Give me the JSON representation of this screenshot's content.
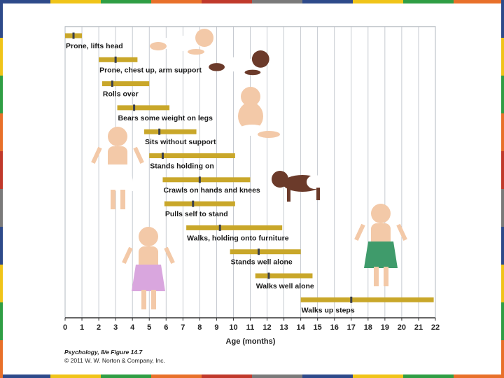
{
  "frame_colors": [
    "#2e4a8a",
    "#f0c419",
    "#2f9e44",
    "#e8702a",
    "#c0392b",
    "#7a7a7a"
  ],
  "credit": {
    "line1": "Psychology, 8/e Figure 14.7",
    "line2": "© 2011 W. W. Norton & Company, Inc."
  },
  "chart_data": {
    "type": "bar",
    "orientation": "horizontal-range",
    "xlabel": "Age (months)",
    "xlim": [
      0,
      22
    ],
    "xticks": [
      0,
      1,
      2,
      3,
      4,
      5,
      6,
      7,
      8,
      9,
      10,
      11,
      12,
      13,
      14,
      15,
      16,
      17,
      18,
      19,
      20,
      21,
      22
    ],
    "grid": "vertical",
    "bar_color": "#c9a72a",
    "marker_color": "#3a3f4b",
    "milestones": [
      {
        "label": "Prone, lifts head",
        "start": 0,
        "end": 1,
        "marker": 0.5
      },
      {
        "label": "Prone, chest up, arm support",
        "start": 2,
        "end": 4.3,
        "marker": 3
      },
      {
        "label": "Rolls over",
        "start": 2.2,
        "end": 5,
        "marker": 2.8
      },
      {
        "label": "Bears some weight on legs",
        "start": 3.1,
        "end": 6.2,
        "marker": 4.1
      },
      {
        "label": "Sits without support",
        "start": 4.7,
        "end": 7.8,
        "marker": 5.6
      },
      {
        "label": "Stands holding on",
        "start": 5,
        "end": 10.1,
        "marker": 5.8
      },
      {
        "label": "Crawls on hands and knees",
        "start": 5.8,
        "end": 11,
        "marker": 8
      },
      {
        "label": "Pulls self to stand",
        "start": 5.9,
        "end": 10.1,
        "marker": 7.6
      },
      {
        "label": "Walks, holding onto furniture",
        "start": 7.2,
        "end": 12.9,
        "marker": 9.2
      },
      {
        "label": "Stands well alone",
        "start": 9.8,
        "end": 14,
        "marker": 11.5
      },
      {
        "label": "Walks well alone",
        "start": 11.3,
        "end": 14.7,
        "marker": 12.1
      },
      {
        "label": "Walks up steps",
        "start": 14,
        "end": 21.9,
        "marker": 17
      }
    ]
  }
}
